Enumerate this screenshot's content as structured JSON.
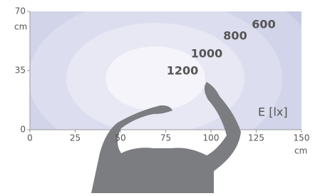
{
  "chart_data": {
    "type": "contour",
    "xlim": [
      0,
      150
    ],
    "xticks": [
      0,
      25,
      50,
      75,
      100,
      125,
      150
    ],
    "x_unit": "cm",
    "ylim": [
      0,
      70
    ],
    "yticks": [
      0,
      35,
      70
    ],
    "y_unit": "cm",
    "legend": "E  [lx]",
    "levels": [
      600,
      800,
      1000,
      1200
    ],
    "colors": [
      "#d2d5e9",
      "#dcdeef",
      "#e7e8f4",
      "#f4f4fa"
    ],
    "background": "#c7cae2",
    "label_color": "#1f4e9c"
  }
}
